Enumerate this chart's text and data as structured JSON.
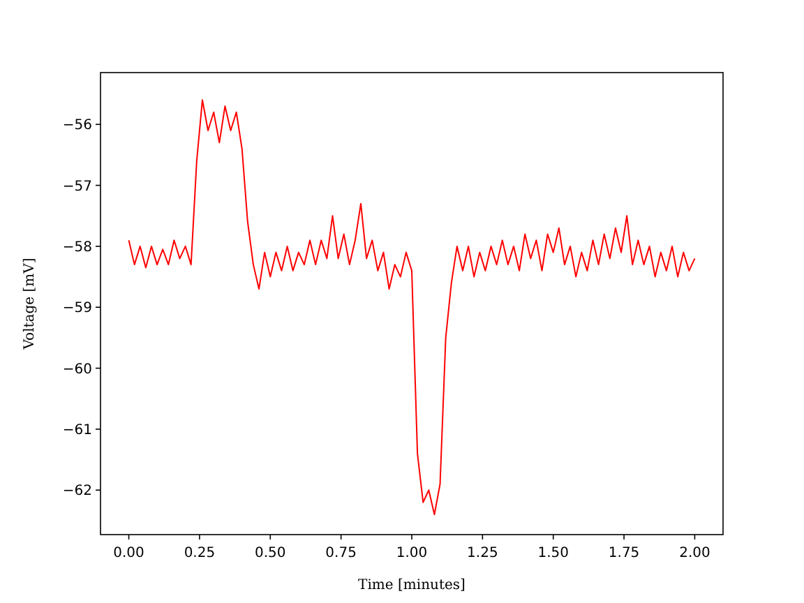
{
  "chart_data": {
    "type": "line",
    "xlabel": "Time [minutes]",
    "ylabel": "Voltage [mV]",
    "xlim": [
      -0.1,
      2.1
    ],
    "ylim": [
      -62.73,
      -55.15
    ],
    "xticks": [
      {
        "value": 0,
        "label": "0.00"
      },
      {
        "value": 0.25,
        "label": "0.25"
      },
      {
        "value": 0.5,
        "label": "0.50"
      },
      {
        "value": 0.75,
        "label": "0.75"
      },
      {
        "value": 1,
        "label": "1.00"
      },
      {
        "value": 1.25,
        "label": "1.25"
      },
      {
        "value": 1.5,
        "label": "1.50"
      },
      {
        "value": 1.75,
        "label": "1.75"
      },
      {
        "value": 2,
        "label": "2.00"
      }
    ],
    "yticks": [
      {
        "value": -62,
        "label": "−62"
      },
      {
        "value": -61,
        "label": "−61"
      },
      {
        "value": -60,
        "label": "−60"
      },
      {
        "value": -59,
        "label": "−59"
      },
      {
        "value": -58,
        "label": "−58"
      },
      {
        "value": -57,
        "label": "−57"
      },
      {
        "value": -56,
        "label": "−56"
      }
    ],
    "grid": false,
    "marker": "none",
    "line_style": "solid",
    "x": [
      0,
      0.02,
      0.04,
      0.06,
      0.08,
      0.1,
      0.12,
      0.14,
      0.16,
      0.18,
      0.2,
      0.22,
      0.24,
      0.26,
      0.28,
      0.3,
      0.32,
      0.34,
      0.36,
      0.38,
      0.4,
      0.42,
      0.44,
      0.46,
      0.48,
      0.5,
      0.52,
      0.54,
      0.56,
      0.58,
      0.6,
      0.62,
      0.64,
      0.66,
      0.68,
      0.7,
      0.72,
      0.74,
      0.76,
      0.78,
      0.8,
      0.82,
      0.84,
      0.86,
      0.88,
      0.9,
      0.92,
      0.94,
      0.96,
      0.98,
      1,
      1.02,
      1.04,
      1.06,
      1.08,
      1.1,
      1.12,
      1.14,
      1.16,
      1.18,
      1.2,
      1.22,
      1.24,
      1.26,
      1.28,
      1.3,
      1.32,
      1.34,
      1.36,
      1.38,
      1.4,
      1.42,
      1.44,
      1.46,
      1.48,
      1.5,
      1.52,
      1.54,
      1.56,
      1.58,
      1.6,
      1.62,
      1.64,
      1.66,
      1.68,
      1.7,
      1.72,
      1.74,
      1.76,
      1.78,
      1.8,
      1.82,
      1.84,
      1.86,
      1.88,
      1.9,
      1.92,
      1.94,
      1.96,
      1.98,
      2
    ],
    "series": [
      {
        "color": "#ff0000",
        "values": [
          -57.9,
          -58.3,
          -58.0,
          -58.35,
          -58.0,
          -58.3,
          -58.05,
          -58.3,
          -57.9,
          -58.2,
          -58.0,
          -58.3,
          -56.6,
          -55.6,
          -56.1,
          -55.8,
          -56.3,
          -55.7,
          -56.1,
          -55.8,
          -56.4,
          -57.6,
          -58.3,
          -58.7,
          -58.1,
          -58.5,
          -58.1,
          -58.4,
          -58.0,
          -58.4,
          -58.1,
          -58.3,
          -57.9,
          -58.3,
          -57.9,
          -58.2,
          -57.5,
          -58.2,
          -57.8,
          -58.3,
          -57.9,
          -57.3,
          -58.2,
          -57.9,
          -58.4,
          -58.1,
          -58.7,
          -58.3,
          -58.5,
          -58.1,
          -58.4,
          -61.4,
          -62.2,
          -62.0,
          -62.4,
          -61.9,
          -59.5,
          -58.6,
          -58.0,
          -58.4,
          -58.0,
          -58.5,
          -58.1,
          -58.4,
          -58.0,
          -58.3,
          -57.9,
          -58.3,
          -58.0,
          -58.4,
          -57.8,
          -58.2,
          -57.9,
          -58.4,
          -57.8,
          -58.1,
          -57.7,
          -58.3,
          -58.0,
          -58.5,
          -58.1,
          -58.4,
          -57.9,
          -58.3,
          -57.8,
          -58.2,
          -57.7,
          -58.1,
          -57.5,
          -58.3,
          -57.9,
          -58.3,
          -58.0,
          -58.5,
          -58.1,
          -58.4,
          -58.0,
          -58.5,
          -58.1,
          -58.4,
          -58.2
        ]
      }
    ]
  }
}
